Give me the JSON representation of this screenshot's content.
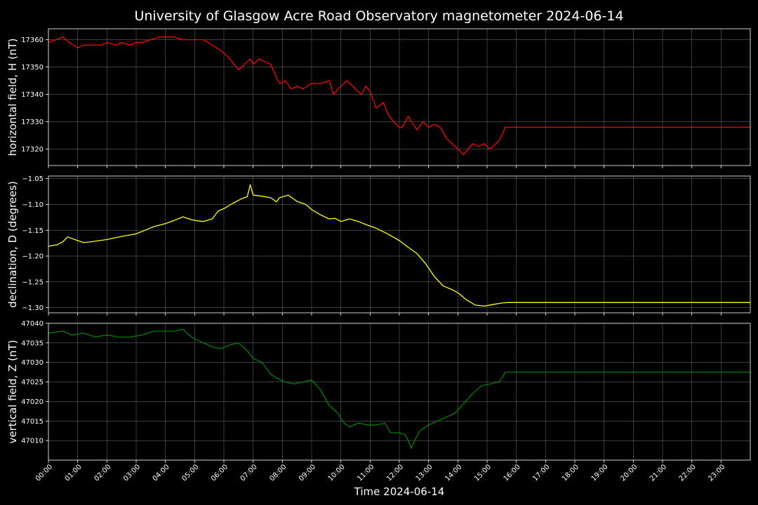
{
  "figure": {
    "title": "University of Glasgow Acre Road Observatory magnetometer 2024-06-14",
    "xlabel": "Time 2024-06-14",
    "background": "#000000",
    "text_color": "#ffffff",
    "grid_color": "#8c8c8c"
  },
  "chart_data": [
    {
      "type": "line",
      "panel": "horizontal-field",
      "ylabel": "horizontal field, H (nT)",
      "color": "#ff0000",
      "ylim": [
        17314,
        17364
      ],
      "yticks": [
        17320,
        17330,
        17340,
        17350,
        17360
      ],
      "ytick_labels": [
        "17320",
        "17330",
        "17340",
        "17350",
        "17360"
      ],
      "xlim_hours": [
        0,
        24
      ],
      "grid": true,
      "x_hours": [
        0,
        0.25,
        0.5,
        0.7,
        1.0,
        1.2,
        1.5,
        1.8,
        2.0,
        2.3,
        2.5,
        2.8,
        3.0,
        3.2,
        3.5,
        3.8,
        4.0,
        4.3,
        4.6,
        5.0,
        5.3,
        5.6,
        5.9,
        6.2,
        6.5,
        6.8,
        6.9,
        7.0,
        7.2,
        7.4,
        7.6,
        7.8,
        7.9,
        8.1,
        8.3,
        8.5,
        8.7,
        9.0,
        9.3,
        9.6,
        9.75,
        9.9,
        10.2,
        10.4,
        10.7,
        10.85,
        11.0,
        11.2,
        11.45,
        11.6,
        11.8,
        12.0,
        12.1,
        12.3,
        12.6,
        12.8,
        13.0,
        13.2,
        13.4,
        13.6,
        13.8,
        14.0,
        14.2,
        14.5,
        14.7,
        14.9,
        15.1,
        15.4,
        15.55,
        15.62,
        16.0,
        18.0,
        20.0,
        22.0,
        24.0
      ],
      "values": [
        17359,
        17360,
        17361,
        17359,
        17357,
        17358,
        17358,
        17358,
        17359,
        17358,
        17359,
        17358,
        17359,
        17359,
        17360,
        17361,
        17361,
        17361,
        17360,
        17360,
        17360,
        17358,
        17356,
        17353,
        17349,
        17352,
        17353,
        17351,
        17353,
        17352,
        17351,
        17346,
        17344,
        17345,
        17342,
        17343,
        17342,
        17344,
        17344,
        17345,
        17340,
        17342,
        17345,
        17343,
        17340,
        17343,
        17341,
        17335,
        17337,
        17333,
        17330,
        17328,
        17328,
        17332,
        17327,
        17330,
        17328,
        17329,
        17328,
        17324,
        17322,
        17320,
        17318,
        17322,
        17321,
        17322,
        17320,
        17323,
        17326,
        17328,
        17328,
        17328,
        17328,
        17328,
        17328
      ]
    },
    {
      "type": "line",
      "panel": "declination",
      "ylabel": "declination, D (degrees)",
      "color": "#ffff00",
      "ylim": [
        -1.31,
        -1.045
      ],
      "yticks": [
        -1.3,
        -1.25,
        -1.2,
        -1.15,
        -1.1,
        -1.05
      ],
      "ytick_labels": [
        "−1.30",
        "−1.25",
        "−1.20",
        "−1.15",
        "−1.10",
        "−1.05"
      ],
      "xlim_hours": [
        0,
        24
      ],
      "grid": true,
      "x_hours": [
        0,
        0.3,
        0.5,
        0.65,
        0.9,
        1.2,
        1.5,
        2.0,
        2.5,
        3.0,
        3.3,
        3.6,
        4.0,
        4.3,
        4.6,
        4.8,
        5.0,
        5.3,
        5.6,
        5.8,
        6.0,
        6.3,
        6.6,
        6.8,
        6.9,
        7.0,
        7.3,
        7.6,
        7.8,
        7.9,
        8.2,
        8.5,
        8.8,
        9.0,
        9.3,
        9.6,
        9.8,
        10.0,
        10.3,
        10.6,
        10.9,
        11.2,
        11.6,
        12.0,
        12.3,
        12.6,
        12.9,
        13.2,
        13.5,
        13.8,
        14.0,
        14.3,
        14.6,
        14.9,
        15.2,
        15.5,
        15.7,
        16.0,
        18.0,
        20.0,
        22.0,
        24.0
      ],
      "values": [
        -1.181,
        -1.178,
        -1.172,
        -1.163,
        -1.168,
        -1.174,
        -1.172,
        -1.168,
        -1.162,
        -1.157,
        -1.15,
        -1.143,
        -1.137,
        -1.131,
        -1.124,
        -1.128,
        -1.131,
        -1.133,
        -1.128,
        -1.113,
        -1.108,
        -1.098,
        -1.089,
        -1.085,
        -1.062,
        -1.082,
        -1.084,
        -1.087,
        -1.095,
        -1.087,
        -1.082,
        -1.094,
        -1.1,
        -1.11,
        -1.12,
        -1.128,
        -1.127,
        -1.133,
        -1.128,
        -1.133,
        -1.14,
        -1.146,
        -1.157,
        -1.17,
        -1.183,
        -1.195,
        -1.215,
        -1.24,
        -1.258,
        -1.265,
        -1.271,
        -1.285,
        -1.295,
        -1.297,
        -1.294,
        -1.291,
        -1.29,
        -1.29,
        -1.29,
        -1.29,
        -1.29,
        -1.29
      ]
    },
    {
      "type": "line",
      "panel": "vertical-field",
      "ylabel": "vertical field, Z (nT)",
      "color": "#008000",
      "ylim": [
        47005,
        47040
      ],
      "yticks": [
        47010,
        47015,
        47020,
        47025,
        47030,
        47035,
        47040
      ],
      "ytick_labels": [
        "47010",
        "47015",
        "47020",
        "47025",
        "47030",
        "47035",
        "47040"
      ],
      "xlim_hours": [
        0,
        24
      ],
      "grid": true,
      "x_hours": [
        0,
        0.5,
        0.8,
        1.2,
        1.6,
        2.0,
        2.4,
        2.8,
        3.2,
        3.6,
        4.0,
        4.3,
        4.6,
        4.8,
        5.0,
        5.3,
        5.6,
        5.9,
        6.2,
        6.5,
        6.8,
        7.0,
        7.3,
        7.6,
        7.8,
        8.1,
        8.4,
        8.7,
        9.0,
        9.3,
        9.6,
        9.9,
        10.1,
        10.3,
        10.6,
        10.9,
        11.2,
        11.5,
        11.7,
        12.0,
        12.2,
        12.3,
        12.4,
        12.55,
        12.7,
        13.0,
        13.3,
        13.6,
        13.9,
        14.2,
        14.5,
        14.8,
        15.1,
        15.4,
        15.55,
        15.62,
        16.0,
        18.0,
        20.0,
        22.0,
        24.0
      ],
      "values": [
        47037.5,
        47038,
        47037,
        47037.5,
        47036.5,
        47037,
        47036.5,
        47036.5,
        47037,
        47038,
        47038,
        47038,
        47038.5,
        47037,
        47036,
        47035,
        47034,
        47033.5,
        47034.5,
        47035,
        47033,
        47031,
        47030,
        47027,
        47026,
        47025,
        47024.5,
        47025,
        47025.5,
        47023,
        47019,
        47017,
        47014.5,
        47013.5,
        47014.5,
        47014,
        47014,
        47014.5,
        47012,
        47012,
        47011.5,
        47010,
        47008,
        47010.5,
        47012.5,
        47014,
        47015,
        47016,
        47017,
        47019.5,
        47022,
        47024,
        47024.5,
        47025,
        47026.5,
        47027.5,
        47027.5,
        47027.5,
        47027.5,
        47027.5,
        47027.5
      ]
    }
  ],
  "xaxis": {
    "tick_labels": [
      "00:00",
      "01:00",
      "02:00",
      "03:00",
      "04:00",
      "05:00",
      "06:00",
      "07:00",
      "08:00",
      "09:00",
      "10:00",
      "11:00",
      "12:00",
      "13:00",
      "14:00",
      "15:00",
      "16:00",
      "17:00",
      "18:00",
      "19:00",
      "20:00",
      "21:00",
      "22:00",
      "23:00"
    ]
  }
}
